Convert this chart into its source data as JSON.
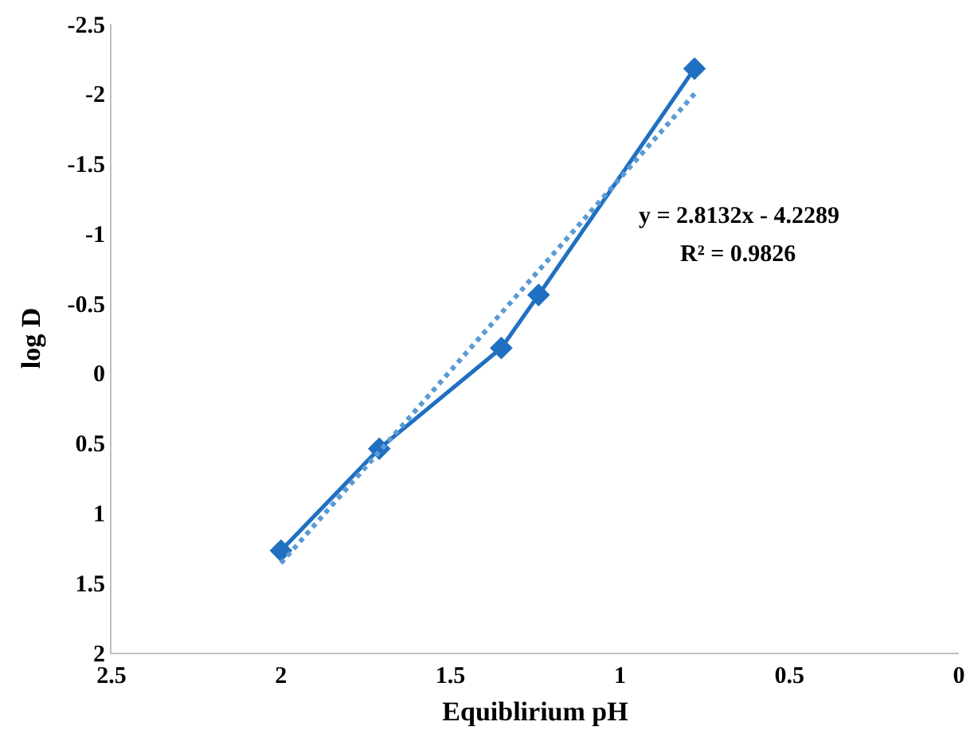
{
  "chart_data": {
    "type": "line",
    "xlabel": "Equiblirium pH",
    "ylabel": "log D",
    "xlim": [
      2.5,
      0
    ],
    "xticks": [
      2.5,
      2,
      1.5,
      1,
      0.5,
      0
    ],
    "ylim": [
      2,
      -2.5
    ],
    "yticks": [
      2,
      1.5,
      1,
      0.5,
      0,
      -0.5,
      -1,
      -1.5,
      -2,
      -2.5
    ],
    "series": [
      {
        "color": "#1f70c1",
        "marker": "diamond",
        "line_style": "solid",
        "x": [
          2.0,
          1.71,
          1.35,
          1.24,
          0.78
        ],
        "values": [
          1.27,
          0.54,
          -0.18,
          -0.56,
          -2.18
        ]
      },
      {
        "color": "#5b9bd5",
        "marker": "none",
        "line_style": "dotted",
        "x": [
          2.0,
          0.78
        ],
        "values": [
          1.36,
          -2.0
        ]
      }
    ],
    "annotations": [
      "y = 2.8132x - 4.2289",
      "R² = 0.9826"
    ]
  }
}
